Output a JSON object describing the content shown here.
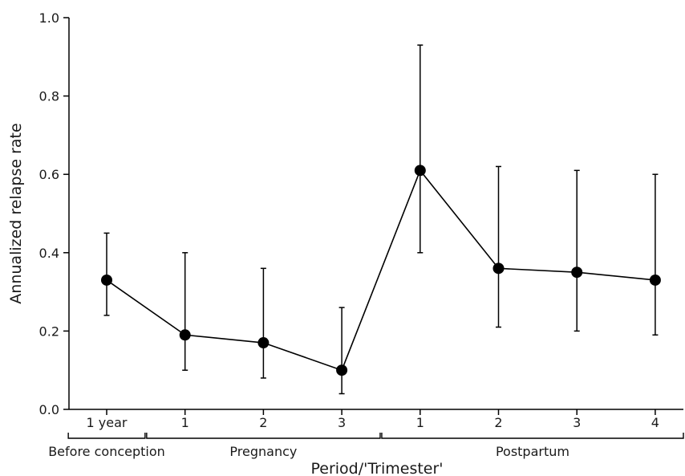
{
  "chart_data": {
    "type": "line",
    "xlabel": "Period/'Trimester'",
    "ylabel": "Annualized relapse rate",
    "ylim": [
      0,
      1.0
    ],
    "yticks": [
      "0.0",
      "0.2",
      "0.4",
      "0.6",
      "0.8",
      "1.0"
    ],
    "categories": [
      "1 year",
      "1",
      "2",
      "3",
      "1",
      "2",
      "3",
      "4"
    ],
    "groups": [
      {
        "label": "Before conception",
        "start": 0,
        "end": 0
      },
      {
        "label": "Pregnancy",
        "start": 1,
        "end": 3
      },
      {
        "label": "Postpartum",
        "start": 4,
        "end": 7
      }
    ],
    "series": [
      {
        "values": [
          0.33,
          0.19,
          0.17,
          0.1,
          0.61,
          0.36,
          0.35,
          0.33
        ],
        "lower": [
          0.24,
          0.1,
          0.08,
          0.04,
          0.4,
          0.21,
          0.2,
          0.19
        ],
        "upper": [
          0.45,
          0.4,
          0.36,
          0.26,
          0.93,
          0.62,
          0.61,
          0.6
        ]
      }
    ],
    "grid": false,
    "colors": {
      "line": "#000000",
      "marker": "#000000"
    }
  }
}
